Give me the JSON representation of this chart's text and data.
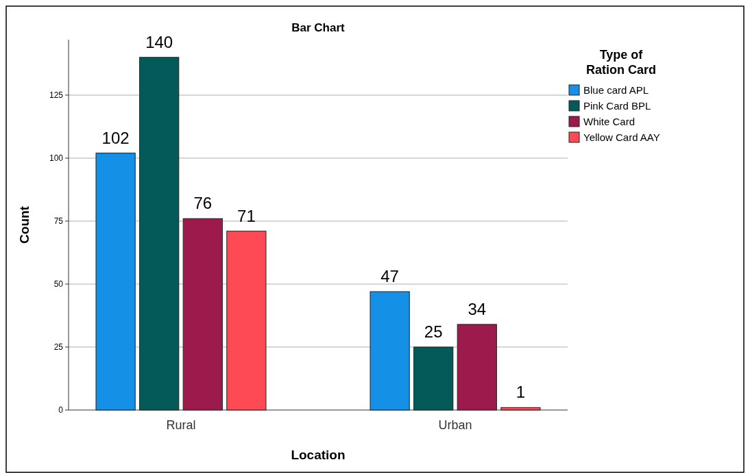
{
  "chart_data": {
    "type": "bar",
    "title": "Bar Chart",
    "xlabel": "Location",
    "ylabel": "Count",
    "legend_title": "Type of Ration Card",
    "categories": [
      "Rural",
      "Urban"
    ],
    "series": [
      {
        "name": "Blue card APL",
        "color": "#1490e6",
        "values": [
          102,
          47
        ]
      },
      {
        "name": "Pink Card BPL",
        "color": "#035a58",
        "values": [
          140,
          25
        ]
      },
      {
        "name": "White Card",
        "color": "#9c1a4c",
        "values": [
          76,
          34
        ]
      },
      {
        "name": "Yellow Card AAY",
        "color": "#fd4a54",
        "values": [
          71,
          1
        ]
      }
    ],
    "ylim": [
      0,
      147
    ],
    "yticks": [
      0,
      25,
      50,
      75,
      100,
      125
    ],
    "grid": "y",
    "legend": "top right",
    "data_labels": true
  }
}
